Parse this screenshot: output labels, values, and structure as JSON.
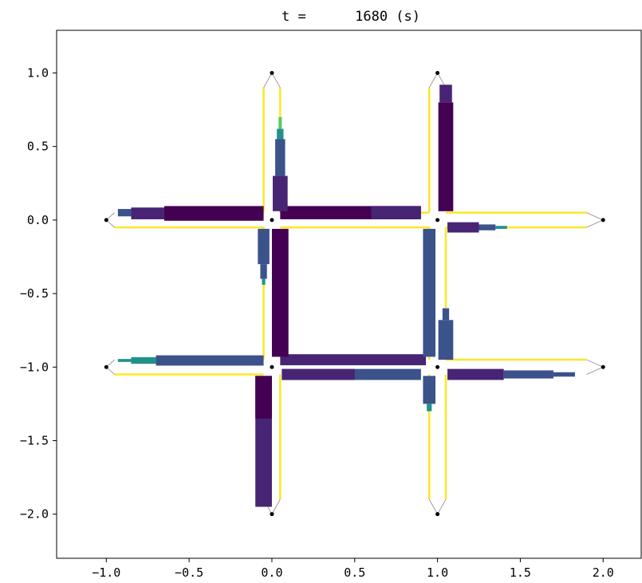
{
  "chart_data": {
    "type": "traffic-network",
    "title": "t =      1680 (s)",
    "xlabel": "",
    "ylabel": "",
    "xlim": [
      -1.3,
      2.23
    ],
    "ylim": [
      -2.3,
      1.29
    ],
    "x_ticks": [
      -1.0,
      -0.5,
      0.0,
      0.5,
      1.0,
      1.5,
      2.0
    ],
    "x_tick_labels": [
      "−1.0",
      "−0.5",
      "0.0",
      "0.5",
      "1.0",
      "1.5",
      "2.0"
    ],
    "y_ticks": [
      1.0,
      0.5,
      0.0,
      -0.5,
      -1.0,
      -1.5,
      -2.0
    ],
    "y_tick_labels": [
      "1.0",
      "0.5",
      "0.0",
      "−0.5",
      "−1.0",
      "−1.5",
      "−2.0"
    ],
    "grid": false,
    "colors": {
      "empty_lane": "#fde725",
      "dark": "#440154",
      "indigo": "#482475",
      "slate": "#3b528b",
      "teal": "#21918c",
      "green": "#5ec962",
      "outline": "#888888"
    },
    "nodes": [
      {
        "x": 0,
        "y": 1
      },
      {
        "x": 1,
        "y": 1
      },
      {
        "x": -1,
        "y": 0
      },
      {
        "x": 0,
        "y": 0
      },
      {
        "x": 1,
        "y": 0
      },
      {
        "x": 2,
        "y": 0
      },
      {
        "x": -1,
        "y": -1
      },
      {
        "x": 0,
        "y": -1
      },
      {
        "x": 1,
        "y": -1
      },
      {
        "x": 2,
        "y": -1
      },
      {
        "x": 0,
        "y": -2
      },
      {
        "x": 1,
        "y": -2
      }
    ],
    "queues": [
      {
        "x0": -0.93,
        "x1": -0.85,
        "y": 0.05,
        "w": 0.05,
        "color": "#3b528b"
      },
      {
        "x0": -0.85,
        "x1": -0.65,
        "y": 0.045,
        "w": 0.08,
        "color": "#482475"
      },
      {
        "x0": -0.65,
        "x1": -0.05,
        "y": 0.045,
        "w": 0.1,
        "color": "#440154"
      },
      {
        "x0": -0.93,
        "x1": -0.85,
        "y": -0.955,
        "w": 0.02,
        "color": "#21918c"
      },
      {
        "x0": -0.85,
        "x1": -0.7,
        "y": -0.955,
        "w": 0.045,
        "color": "#21918c"
      },
      {
        "x0": -0.7,
        "x1": -0.05,
        "y": -0.955,
        "w": 0.07,
        "color": "#3b528b"
      },
      {
        "x0": 0.06,
        "x1": 0.9,
        "y": -1.05,
        "w": 0.075,
        "color": "#3b528b"
      },
      {
        "x0": 0.06,
        "x1": 0.5,
        "y": -1.05,
        "w": 0.075,
        "color": "#482475"
      },
      {
        "x0": 0.05,
        "x1": 0.93,
        "y": -0.95,
        "w": 0.075,
        "color": "#482475"
      },
      {
        "x0": 1.06,
        "x1": 1.4,
        "y": -1.05,
        "w": 0.075,
        "color": "#482475"
      },
      {
        "x0": 1.4,
        "x1": 1.7,
        "y": -1.05,
        "w": 0.055,
        "color": "#3b528b"
      },
      {
        "x0": 1.7,
        "x1": 1.83,
        "y": -1.05,
        "w": 0.03,
        "color": "#3b528b"
      },
      {
        "x0": 0.05,
        "x1": 0.9,
        "y": 0.05,
        "w": 0.09,
        "color": "#440154"
      },
      {
        "x0": 0.6,
        "x1": 0.9,
        "y": 0.05,
        "w": 0.09,
        "color": "#482475"
      },
      {
        "x0": 1.06,
        "x1": 1.25,
        "y": -0.05,
        "w": 0.07,
        "color": "#482475"
      },
      {
        "x0": 1.25,
        "x1": 1.35,
        "y": -0.05,
        "w": 0.04,
        "color": "#3b528b"
      },
      {
        "x0": 1.35,
        "x1": 1.42,
        "y": -0.05,
        "w": 0.02,
        "color": "#21918c"
      }
    ],
    "vqueues": [
      {
        "x": 0.05,
        "y0": 0.06,
        "y1": 0.3,
        "w": 0.09,
        "color": "#482475"
      },
      {
        "x": 0.05,
        "y0": 0.3,
        "y1": 0.55,
        "w": 0.06,
        "color": "#3b528b"
      },
      {
        "x": 0.05,
        "y0": 0.55,
        "y1": 0.62,
        "w": 0.04,
        "color": "#21918c"
      },
      {
        "x": 0.05,
        "y0": 0.62,
        "y1": 0.7,
        "w": 0.02,
        "color": "#5ec962"
      },
      {
        "x": 1.05,
        "y0": 0.06,
        "y1": 0.8,
        "w": 0.09,
        "color": "#440154"
      },
      {
        "x": 1.05,
        "y0": 0.8,
        "y1": 0.92,
        "w": 0.075,
        "color": "#482475"
      },
      {
        "x": -0.05,
        "y0": -0.3,
        "y1": -0.06,
        "w": 0.07,
        "color": "#3b528b"
      },
      {
        "x": -0.05,
        "y0": -0.4,
        "y1": -0.3,
        "w": 0.04,
        "color": "#3b528b"
      },
      {
        "x": -0.05,
        "y0": -0.44,
        "y1": -0.4,
        "w": 0.02,
        "color": "#21918c"
      },
      {
        "x": 0.05,
        "y0": -0.93,
        "y1": -0.06,
        "w": 0.1,
        "color": "#440154"
      },
      {
        "x": 0.95,
        "y0": -0.93,
        "y1": -0.06,
        "w": 0.075,
        "color": "#3b528b"
      },
      {
        "x": 1.05,
        "y0": -0.95,
        "y1": -0.68,
        "w": 0.09,
        "color": "#3b528b"
      },
      {
        "x": 1.05,
        "y0": -0.68,
        "y1": -0.6,
        "w": 0.04,
        "color": "#3b528b"
      },
      {
        "x": -0.05,
        "y0": -1.95,
        "y1": -1.06,
        "w": 0.1,
        "color": "#482475"
      },
      {
        "x": -0.05,
        "y0": -1.35,
        "y1": -1.06,
        "w": 0.1,
        "color": "#440154"
      },
      {
        "x": 0.95,
        "y0": -1.25,
        "y1": -1.06,
        "w": 0.075,
        "color": "#3b528b"
      },
      {
        "x": 0.95,
        "y0": -1.3,
        "y1": -1.25,
        "w": 0.03,
        "color": "#21918c"
      }
    ],
    "empty_lanes_h": [
      {
        "x0": -0.95,
        "x1": -0.05,
        "y": -0.05
      },
      {
        "x0": 0.05,
        "x1": 0.95,
        "y": 0.05
      },
      {
        "x0": 1.05,
        "x1": 1.9,
        "y": 0.05
      },
      {
        "x0": 1.05,
        "x1": 1.9,
        "y": -0.05
      },
      {
        "x0": -0.95,
        "x1": -0.05,
        "y": -1.05
      },
      {
        "x0": 1.05,
        "x1": 1.9,
        "y": -0.95
      },
      {
        "x0": 0.05,
        "x1": 0.95,
        "y": -0.05
      }
    ],
    "empty_lanes_v": [
      {
        "x": -0.05,
        "y0": 0.05,
        "y1": 0.9
      },
      {
        "x": 0.05,
        "y0": 0.05,
        "y1": 0.9
      },
      {
        "x": 0.95,
        "y0": 0.05,
        "y1": 0.9
      },
      {
        "x": -0.05,
        "y0": -0.95,
        "y1": -0.05
      },
      {
        "x": 0.95,
        "y0": -0.95,
        "y1": -0.05
      },
      {
        "x": 1.05,
        "y0": -0.95,
        "y1": -0.05
      },
      {
        "x": 0.05,
        "y0": -1.9,
        "y1": -1.05
      },
      {
        "x": 0.95,
        "y0": -1.9,
        "y1": -1.05
      },
      {
        "x": 1.05,
        "y0": -1.9,
        "y1": -1.05
      }
    ]
  }
}
